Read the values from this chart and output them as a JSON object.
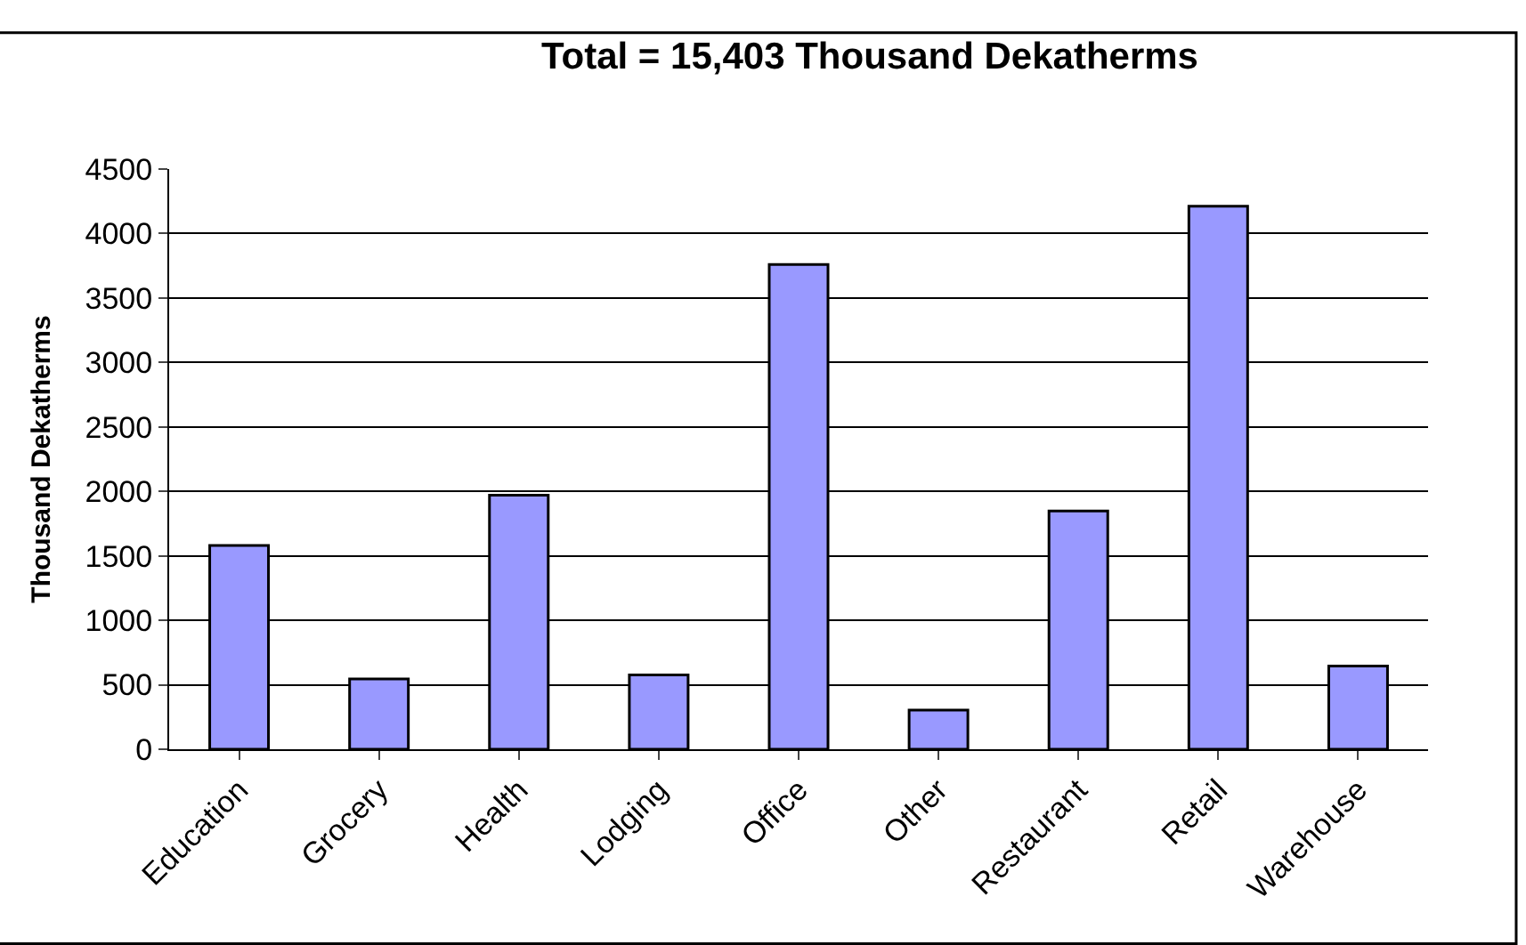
{
  "chart_data": {
    "type": "bar",
    "title": "Total = 15,403 Thousand Dekatherms",
    "ylabel": "Thousand Dekatherms",
    "categories": [
      "Education",
      "Grocery",
      "Health",
      "Lodging",
      "Office",
      "Other",
      "Restaurant",
      "Retail",
      "Warehouse"
    ],
    "values": [
      1580,
      545,
      1970,
      576,
      3760,
      303,
      1848,
      4212,
      646
    ],
    "color": "#9999ff",
    "ylim": [
      0,
      4500
    ],
    "yticks": [
      0,
      500,
      1000,
      1500,
      2000,
      2500,
      3000,
      3500,
      4000,
      4500
    ],
    "grid": "y",
    "legend": false
  }
}
